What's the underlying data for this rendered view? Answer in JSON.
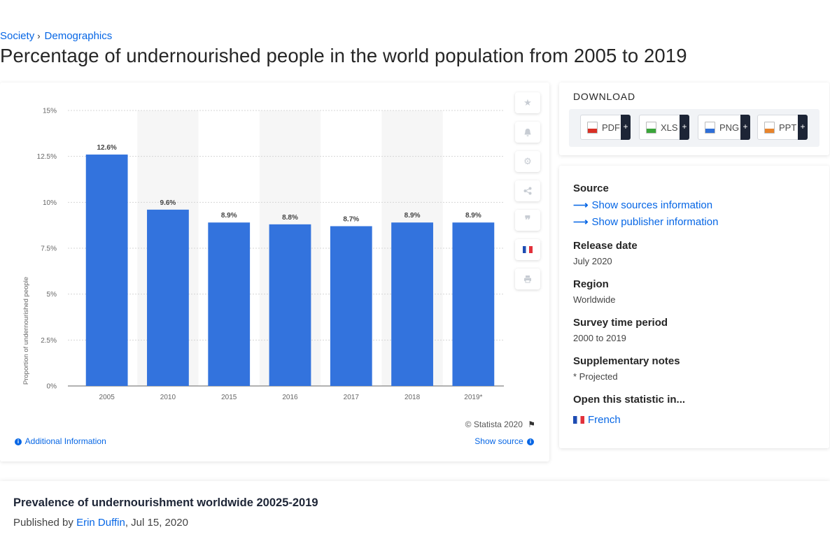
{
  "breadcrumb": {
    "level1": "Society",
    "level2": "Demographics"
  },
  "page_title": "Percentage of undernourished people in the world population from 2005 to 2019",
  "colors": {
    "bar": "#3373dd",
    "link": "#0666e5",
    "band": "#f6f6f6"
  },
  "chart_data": {
    "type": "bar",
    "categories": [
      "2005",
      "2010",
      "2015",
      "2016",
      "2017",
      "2018",
      "2019*"
    ],
    "values": [
      12.6,
      9.6,
      8.9,
      8.8,
      8.7,
      8.9,
      8.9
    ],
    "value_labels": [
      "12.6%",
      "9.6%",
      "8.9%",
      "8.8%",
      "8.7%",
      "8.9%",
      "8.9%"
    ],
    "ylabel": "Proportion of undernourished people",
    "yticks": [
      0,
      2.5,
      5,
      7.5,
      10,
      12.5,
      15
    ],
    "ytick_labels": [
      "0%",
      "2.5%",
      "5%",
      "7.5%",
      "10%",
      "12.5%",
      "15%"
    ],
    "ylim": [
      0,
      15
    ],
    "grid": true,
    "legend": "none"
  },
  "chart_footer": {
    "copyright": "© Statista 2020",
    "additional_info": "Additional Information",
    "show_source": "Show source"
  },
  "tools": [
    "star-icon",
    "bell-icon",
    "gear-icon",
    "share-icon",
    "quote-icon",
    "french-flag-icon",
    "print-icon"
  ],
  "download": {
    "title": "DOWNLOAD",
    "buttons": [
      {
        "label": "PDF",
        "icon": "pdf-file-icon",
        "color": "#d93025"
      },
      {
        "label": "XLS",
        "icon": "xls-file-icon",
        "color": "#3aa53a"
      },
      {
        "label": "PNG",
        "icon": "png-file-icon",
        "color": "#2f6fd8"
      },
      {
        "label": "PPT",
        "icon": "ppt-file-icon",
        "color": "#e8842c"
      }
    ],
    "plus": "+"
  },
  "meta": {
    "source_label": "Source",
    "show_sources": "Show sources information",
    "show_publisher": "Show publisher information",
    "release_label": "Release date",
    "release_value": "July 2020",
    "region_label": "Region",
    "region_value": "Worldwide",
    "survey_label": "Survey time period",
    "survey_value": "2000 to 2019",
    "notes_label": "Supplementary notes",
    "notes_value": "* Projected",
    "open_label": "Open this statistic in...",
    "open_value": "French"
  },
  "description": {
    "title": "Prevalence of undernourishment worldwide 20025-2019",
    "published_prefix": "Published by",
    "author": "Erin Duffin",
    "date": ", Jul 15, 2020"
  }
}
